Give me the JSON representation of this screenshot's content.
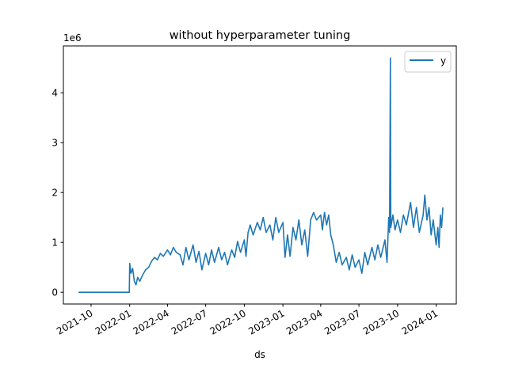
{
  "chart_data": {
    "type": "line",
    "title": "without hyperparameter tuning",
    "xlabel": "ds",
    "ylabel": "",
    "y_offset_label": "1e6",
    "xlim": [
      "2021-07-27",
      "2024-02-18"
    ],
    "ylim": [
      -0.235,
      4.94
    ],
    "x_tick_labels": [
      "2021-10",
      "2022-01",
      "2022-04",
      "2022-07",
      "2022-10",
      "2023-01",
      "2023-04",
      "2023-07",
      "2023-10",
      "2024-01"
    ],
    "x_tick_dates": [
      "2021-10-01",
      "2022-01-01",
      "2022-04-01",
      "2022-07-01",
      "2022-10-01",
      "2023-01-01",
      "2023-04-01",
      "2023-07-01",
      "2023-10-01",
      "2024-01-01"
    ],
    "y_tick_labels": [
      "0",
      "1",
      "2",
      "3",
      "4"
    ],
    "y_tick_values": [
      0,
      1,
      2,
      3,
      4
    ],
    "legend": {
      "position": "top-right",
      "entries": [
        "y"
      ]
    },
    "grid": false,
    "series_color": "#1f77b4",
    "series": [
      {
        "name": "y",
        "points": [
          [
            "2021-09-01",
            0
          ],
          [
            "2021-10-01",
            0
          ],
          [
            "2021-11-01",
            0
          ],
          [
            "2021-12-01",
            0
          ],
          [
            "2021-12-31",
            0
          ],
          [
            "2022-01-01",
            0.58
          ],
          [
            "2022-01-04",
            0.38
          ],
          [
            "2022-01-08",
            0.48
          ],
          [
            "2022-01-12",
            0.22
          ],
          [
            "2022-01-16",
            0.15
          ],
          [
            "2022-01-20",
            0.3
          ],
          [
            "2022-01-25",
            0.22
          ],
          [
            "2022-02-01",
            0.35
          ],
          [
            "2022-02-08",
            0.45
          ],
          [
            "2022-02-15",
            0.5
          ],
          [
            "2022-02-22",
            0.62
          ],
          [
            "2022-03-01",
            0.7
          ],
          [
            "2022-03-08",
            0.65
          ],
          [
            "2022-03-15",
            0.78
          ],
          [
            "2022-03-22",
            0.72
          ],
          [
            "2022-04-01",
            0.85
          ],
          [
            "2022-04-08",
            0.75
          ],
          [
            "2022-04-15",
            0.9
          ],
          [
            "2022-04-22",
            0.8
          ],
          [
            "2022-05-01",
            0.75
          ],
          [
            "2022-05-08",
            0.55
          ],
          [
            "2022-05-15",
            0.9
          ],
          [
            "2022-05-22",
            0.65
          ],
          [
            "2022-06-01",
            0.95
          ],
          [
            "2022-06-08",
            0.6
          ],
          [
            "2022-06-15",
            0.82
          ],
          [
            "2022-06-22",
            0.45
          ],
          [
            "2022-07-01",
            0.78
          ],
          [
            "2022-07-08",
            0.55
          ],
          [
            "2022-07-15",
            0.85
          ],
          [
            "2022-07-22",
            0.6
          ],
          [
            "2022-08-01",
            0.9
          ],
          [
            "2022-08-08",
            0.65
          ],
          [
            "2022-08-15",
            0.8
          ],
          [
            "2022-08-22",
            0.55
          ],
          [
            "2022-09-01",
            0.85
          ],
          [
            "2022-09-08",
            0.7
          ],
          [
            "2022-09-15",
            1.02
          ],
          [
            "2022-09-22",
            0.8
          ],
          [
            "2022-10-01",
            1.05
          ],
          [
            "2022-10-05",
            0.72
          ],
          [
            "2022-10-10",
            1.2
          ],
          [
            "2022-10-15",
            1.35
          ],
          [
            "2022-10-22",
            1.15
          ],
          [
            "2022-11-01",
            1.4
          ],
          [
            "2022-11-08",
            1.25
          ],
          [
            "2022-11-15",
            1.5
          ],
          [
            "2022-11-22",
            1.2
          ],
          [
            "2022-12-01",
            1.35
          ],
          [
            "2022-12-08",
            1.05
          ],
          [
            "2022-12-15",
            1.5
          ],
          [
            "2022-12-22",
            1.2
          ],
          [
            "2023-01-01",
            1.4
          ],
          [
            "2023-01-06",
            0.7
          ],
          [
            "2023-01-12",
            1.15
          ],
          [
            "2023-01-18",
            0.72
          ],
          [
            "2023-01-25",
            1.3
          ],
          [
            "2023-02-01",
            1.05
          ],
          [
            "2023-02-08",
            1.45
          ],
          [
            "2023-02-15",
            0.95
          ],
          [
            "2023-02-22",
            1.25
          ],
          [
            "2023-03-01",
            0.72
          ],
          [
            "2023-03-08",
            1.45
          ],
          [
            "2023-03-15",
            1.6
          ],
          [
            "2023-03-22",
            1.45
          ],
          [
            "2023-04-01",
            1.55
          ],
          [
            "2023-04-05",
            1.25
          ],
          [
            "2023-04-10",
            1.6
          ],
          [
            "2023-04-15",
            1.35
          ],
          [
            "2023-04-20",
            1.55
          ],
          [
            "2023-04-25",
            1.15
          ],
          [
            "2023-05-01",
            0.95
          ],
          [
            "2023-05-08",
            0.6
          ],
          [
            "2023-05-15",
            0.8
          ],
          [
            "2023-05-22",
            0.55
          ],
          [
            "2023-06-01",
            0.7
          ],
          [
            "2023-06-08",
            0.45
          ],
          [
            "2023-06-15",
            0.75
          ],
          [
            "2023-06-22",
            0.5
          ],
          [
            "2023-07-01",
            0.65
          ],
          [
            "2023-07-08",
            0.38
          ],
          [
            "2023-07-15",
            0.8
          ],
          [
            "2023-07-22",
            0.55
          ],
          [
            "2023-08-01",
            0.9
          ],
          [
            "2023-08-08",
            0.65
          ],
          [
            "2023-08-15",
            0.95
          ],
          [
            "2023-08-22",
            0.7
          ],
          [
            "2023-09-01",
            1.05
          ],
          [
            "2023-09-06",
            0.6
          ],
          [
            "2023-09-10",
            1.5
          ],
          [
            "2023-09-12",
            1.2
          ],
          [
            "2023-09-14",
            4.7
          ],
          [
            "2023-09-15",
            1.3
          ],
          [
            "2023-09-20",
            1.55
          ],
          [
            "2023-09-25",
            1.25
          ],
          [
            "2023-10-01",
            1.45
          ],
          [
            "2023-10-08",
            1.2
          ],
          [
            "2023-10-15",
            1.55
          ],
          [
            "2023-10-22",
            1.35
          ],
          [
            "2023-11-01",
            1.8
          ],
          [
            "2023-11-08",
            1.3
          ],
          [
            "2023-11-15",
            1.7
          ],
          [
            "2023-11-22",
            1.2
          ],
          [
            "2023-12-01",
            1.55
          ],
          [
            "2023-12-05",
            1.95
          ],
          [
            "2023-12-10",
            1.45
          ],
          [
            "2023-12-15",
            1.7
          ],
          [
            "2023-12-20",
            1.15
          ],
          [
            "2023-12-25",
            1.45
          ],
          [
            "2024-01-01",
            0.95
          ],
          [
            "2024-01-05",
            1.3
          ],
          [
            "2024-01-08",
            0.9
          ],
          [
            "2024-01-11",
            1.55
          ],
          [
            "2024-01-14",
            1.3
          ],
          [
            "2024-01-17",
            1.7
          ]
        ]
      }
    ]
  }
}
